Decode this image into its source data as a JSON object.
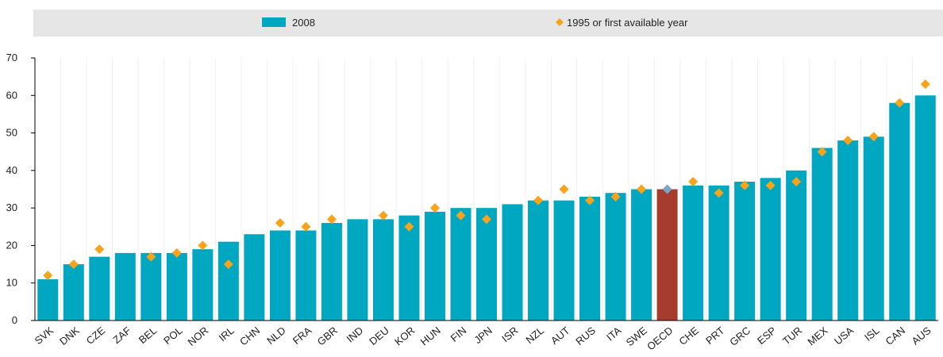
{
  "chart_data": {
    "type": "bar",
    "categories": [
      "SVK",
      "DNK",
      "CZE",
      "ZAF",
      "BEL",
      "POL",
      "NOR",
      "IRL",
      "CHN",
      "NLD",
      "FRA",
      "GBR",
      "IND",
      "DEU",
      "KOR",
      "HUN",
      "FIN",
      "JPN",
      "ISR",
      "NZL",
      "AUT",
      "RUS",
      "ITA",
      "SWE",
      "OECD",
      "CHE",
      "PRT",
      "GRC",
      "ESP",
      "TUR",
      "MEX",
      "USA",
      "ISL",
      "CAN",
      "AUS"
    ],
    "series": [
      {
        "name": "2008",
        "kind": "bar",
        "color": "#00a7c0",
        "colors": [
          "#00a7c0",
          "#00a7c0",
          "#00a7c0",
          "#00a7c0",
          "#00a7c0",
          "#00a7c0",
          "#00a7c0",
          "#00a7c0",
          "#00a7c0",
          "#00a7c0",
          "#00a7c0",
          "#00a7c0",
          "#00a7c0",
          "#00a7c0",
          "#00a7c0",
          "#00a7c0",
          "#00a7c0",
          "#00a7c0",
          "#00a7c0",
          "#00a7c0",
          "#00a7c0",
          "#00a7c0",
          "#00a7c0",
          "#00a7c0",
          "#a63c2e",
          "#00a7c0",
          "#00a7c0",
          "#00a7c0",
          "#00a7c0",
          "#00a7c0",
          "#00a7c0",
          "#00a7c0",
          "#00a7c0",
          "#00a7c0",
          "#00a7c0"
        ],
        "values": [
          11,
          15,
          17,
          18,
          18,
          18,
          19,
          21,
          23,
          24,
          24,
          26,
          27,
          27,
          28,
          29,
          30,
          30,
          31,
          32,
          32,
          33,
          34,
          35,
          35,
          36,
          36,
          37,
          38,
          40,
          46,
          48,
          49,
          58,
          60
        ]
      },
      {
        "name": "1995 or first available year",
        "kind": "diamond",
        "color": "#f7a31c",
        "colors": [
          "#f7a31c",
          "#f7a31c",
          "#f7a31c",
          "#f7a31c",
          "#f7a31c",
          "#f7a31c",
          "#f7a31c",
          "#f7a31c",
          "#f7a31c",
          "#f7a31c",
          "#f7a31c",
          "#f7a31c",
          "#f7a31c",
          "#f7a31c",
          "#f7a31c",
          "#f7a31c",
          "#f7a31c",
          "#f7a31c",
          "#f7a31c",
          "#f7a31c",
          "#f7a31c",
          "#f7a31c",
          "#f7a31c",
          "#f7a31c",
          "#7aa7c7",
          "#f7a31c",
          "#f7a31c",
          "#f7a31c",
          "#f7a31c",
          "#f7a31c",
          "#f7a31c",
          "#f7a31c",
          "#f7a31c",
          "#f7a31c",
          "#f7a31c"
        ],
        "values": [
          12,
          15,
          19,
          null,
          17,
          18,
          20,
          15,
          null,
          26,
          25,
          27,
          null,
          28,
          25,
          30,
          28,
          27,
          null,
          32,
          35,
          32,
          33,
          35,
          35,
          37,
          34,
          36,
          36,
          37,
          45,
          48,
          49,
          58,
          63
        ]
      }
    ],
    "ylim": [
      0,
      70
    ],
    "yticks": [
      0,
      10,
      20,
      30,
      40,
      50,
      60,
      70
    ]
  }
}
